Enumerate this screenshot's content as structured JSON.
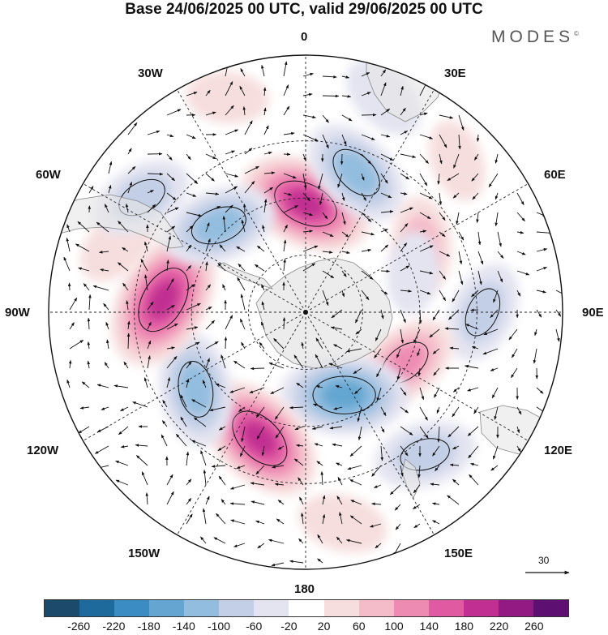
{
  "title": "Base 24/06/2025 00 UTC, valid 29/06/2025 00 UTC",
  "brand": "MODES",
  "brand_mark": "©",
  "longitude_labels": {
    "n0": "0",
    "n30e": "30E",
    "n60e": "60E",
    "n90e": "90E",
    "n120e": "120E",
    "n150e": "150E",
    "n180": "180",
    "n150w": "150W",
    "n120w": "120W",
    "n90w": "90W",
    "n60w": "60W",
    "n30w": "30W"
  },
  "reference_vector": "30",
  "colorbar": {
    "colors": [
      "#1b4a6b",
      "#1f6a9c",
      "#3a8cc2",
      "#64a6d1",
      "#93bddf",
      "#c3cfe6",
      "#e4e4f1",
      "#ffffff",
      "#f7dede",
      "#f4bcc9",
      "#ee8bb3",
      "#e05aa2",
      "#c02f91",
      "#931a83",
      "#5e0f72"
    ],
    "ticks": [
      "-260",
      "-220",
      "-180",
      "-140",
      "-100",
      "-60",
      "-20",
      "20",
      "60",
      "100",
      "140",
      "180",
      "220",
      "260"
    ]
  },
  "anomalies": [
    {
      "lon": 0,
      "colat": 38,
      "value": 200
    },
    {
      "lon": 20,
      "colat": 52,
      "value": -140
    },
    {
      "lon": 60,
      "colat": 47,
      "value": 80
    },
    {
      "lon": 70,
      "colat": 40,
      "value": -40
    },
    {
      "lon": 90,
      "colat": 62,
      "value": -100
    },
    {
      "lon": 117,
      "colat": 39,
      "value": 120
    },
    {
      "lon": 155,
      "colat": 32,
      "value": -180
    },
    {
      "lon": 140,
      "colat": 65,
      "value": -100
    },
    {
      "lon": -160,
      "colat": 47,
      "value": 200
    },
    {
      "lon": -125,
      "colat": 47,
      "value": -140
    },
    {
      "lon": -85,
      "colat": 50,
      "value": 220
    },
    {
      "lon": -70,
      "colat": 70,
      "value": 60
    },
    {
      "lon": -45,
      "colat": 43,
      "value": -140
    },
    {
      "lon": -55,
      "colat": 70,
      "value": -100
    },
    {
      "lon": 20,
      "colat": 80,
      "value": -60
    },
    {
      "lon": 170,
      "colat": 75,
      "value": 60
    },
    {
      "lon": -20,
      "colat": 80,
      "value": 40
    },
    {
      "lon": 45,
      "colat": 75,
      "value": 40
    }
  ]
}
